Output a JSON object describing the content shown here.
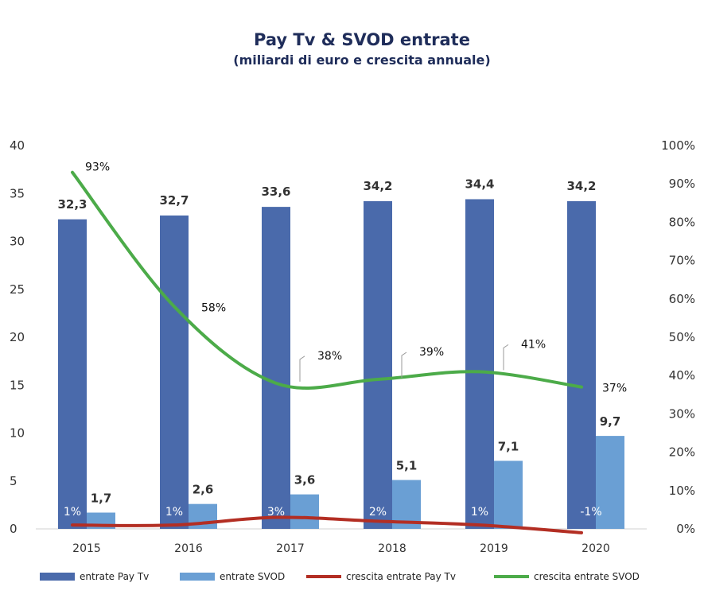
{
  "chart_data": {
    "type": "bar",
    "title": "Pay Tv & SVOD entrate",
    "subtitle": "(miliardi di euro e crescita annuale)",
    "categories": [
      "2015",
      "2016",
      "2017",
      "2018",
      "2019",
      "2020"
    ],
    "y_left": {
      "min": 0,
      "max": 40,
      "ticks": [
        "0",
        "5",
        "10",
        "15",
        "20",
        "25",
        "30",
        "35",
        "40"
      ]
    },
    "y_right": {
      "min": 0,
      "max": 100,
      "ticks": [
        "0%",
        "10%",
        "20%",
        "30%",
        "40%",
        "50%",
        "60%",
        "70%",
        "80%",
        "90%",
        "100%"
      ]
    },
    "series": [
      {
        "name": "entrate Pay Tv",
        "kind": "bar",
        "axis": "left",
        "color": "#4a6aab",
        "values": [
          32.3,
          32.7,
          33.6,
          34.2,
          34.4,
          34.2
        ],
        "labels": [
          "32,3",
          "32,7",
          "33,6",
          "34,2",
          "34,4",
          "34,2"
        ]
      },
      {
        "name": "entrate SVOD",
        "kind": "bar",
        "axis": "left",
        "color": "#6a9fd4",
        "values": [
          1.7,
          2.6,
          3.6,
          5.1,
          7.1,
          9.7
        ],
        "labels": [
          "1,7",
          "2,6",
          "3,6",
          "5,1",
          "7,1",
          "9,7"
        ]
      },
      {
        "name": "crescita entrate Pay Tv",
        "kind": "line",
        "axis": "right",
        "color": "#b32e23",
        "values": [
          1,
          1,
          3,
          2,
          1,
          -1
        ],
        "labels": [
          "1%",
          "1%",
          "3%",
          "2%",
          "1%",
          "-1%"
        ]
      },
      {
        "name": "crescita entrate SVOD",
        "kind": "line",
        "axis": "right",
        "color": "#4cab49",
        "values": [
          93,
          58,
          38,
          39,
          41,
          37
        ],
        "labels": [
          "93%",
          "58%",
          "38%",
          "39%",
          "41%",
          "37%"
        ]
      }
    ],
    "legend_position": "bottom",
    "grid": false
  }
}
